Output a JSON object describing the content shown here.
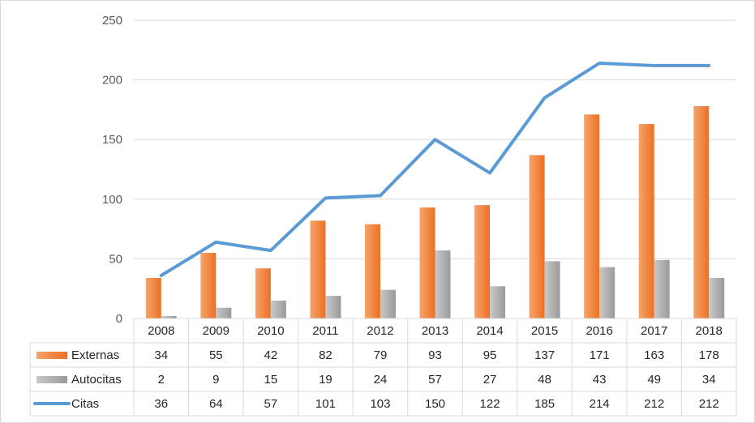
{
  "chart_data": {
    "type": "bar",
    "title": "",
    "xlabel": "",
    "ylabel": "",
    "categories": [
      "2008",
      "2009",
      "2010",
      "2011",
      "2012",
      "2013",
      "2014",
      "2015",
      "2016",
      "2017",
      "2018"
    ],
    "ylim": [
      0,
      250
    ],
    "yticks": [
      "0",
      "50",
      "100",
      "150",
      "200",
      "250"
    ],
    "grid": true,
    "legend": "data-table",
    "series": [
      {
        "name": "Externas",
        "kind": "bar",
        "color": "#ed7d31",
        "values": [
          34,
          55,
          42,
          82,
          79,
          93,
          95,
          137,
          171,
          163,
          178
        ]
      },
      {
        "name": "Autocitas",
        "kind": "bar",
        "color": "#a5a5a5",
        "values": [
          2,
          9,
          15,
          19,
          24,
          57,
          27,
          48,
          43,
          49,
          34
        ]
      },
      {
        "name": "Citas",
        "kind": "line",
        "color": "#5b9bd5",
        "values": [
          36,
          64,
          57,
          101,
          103,
          150,
          122,
          185,
          214,
          212,
          212
        ]
      }
    ]
  }
}
